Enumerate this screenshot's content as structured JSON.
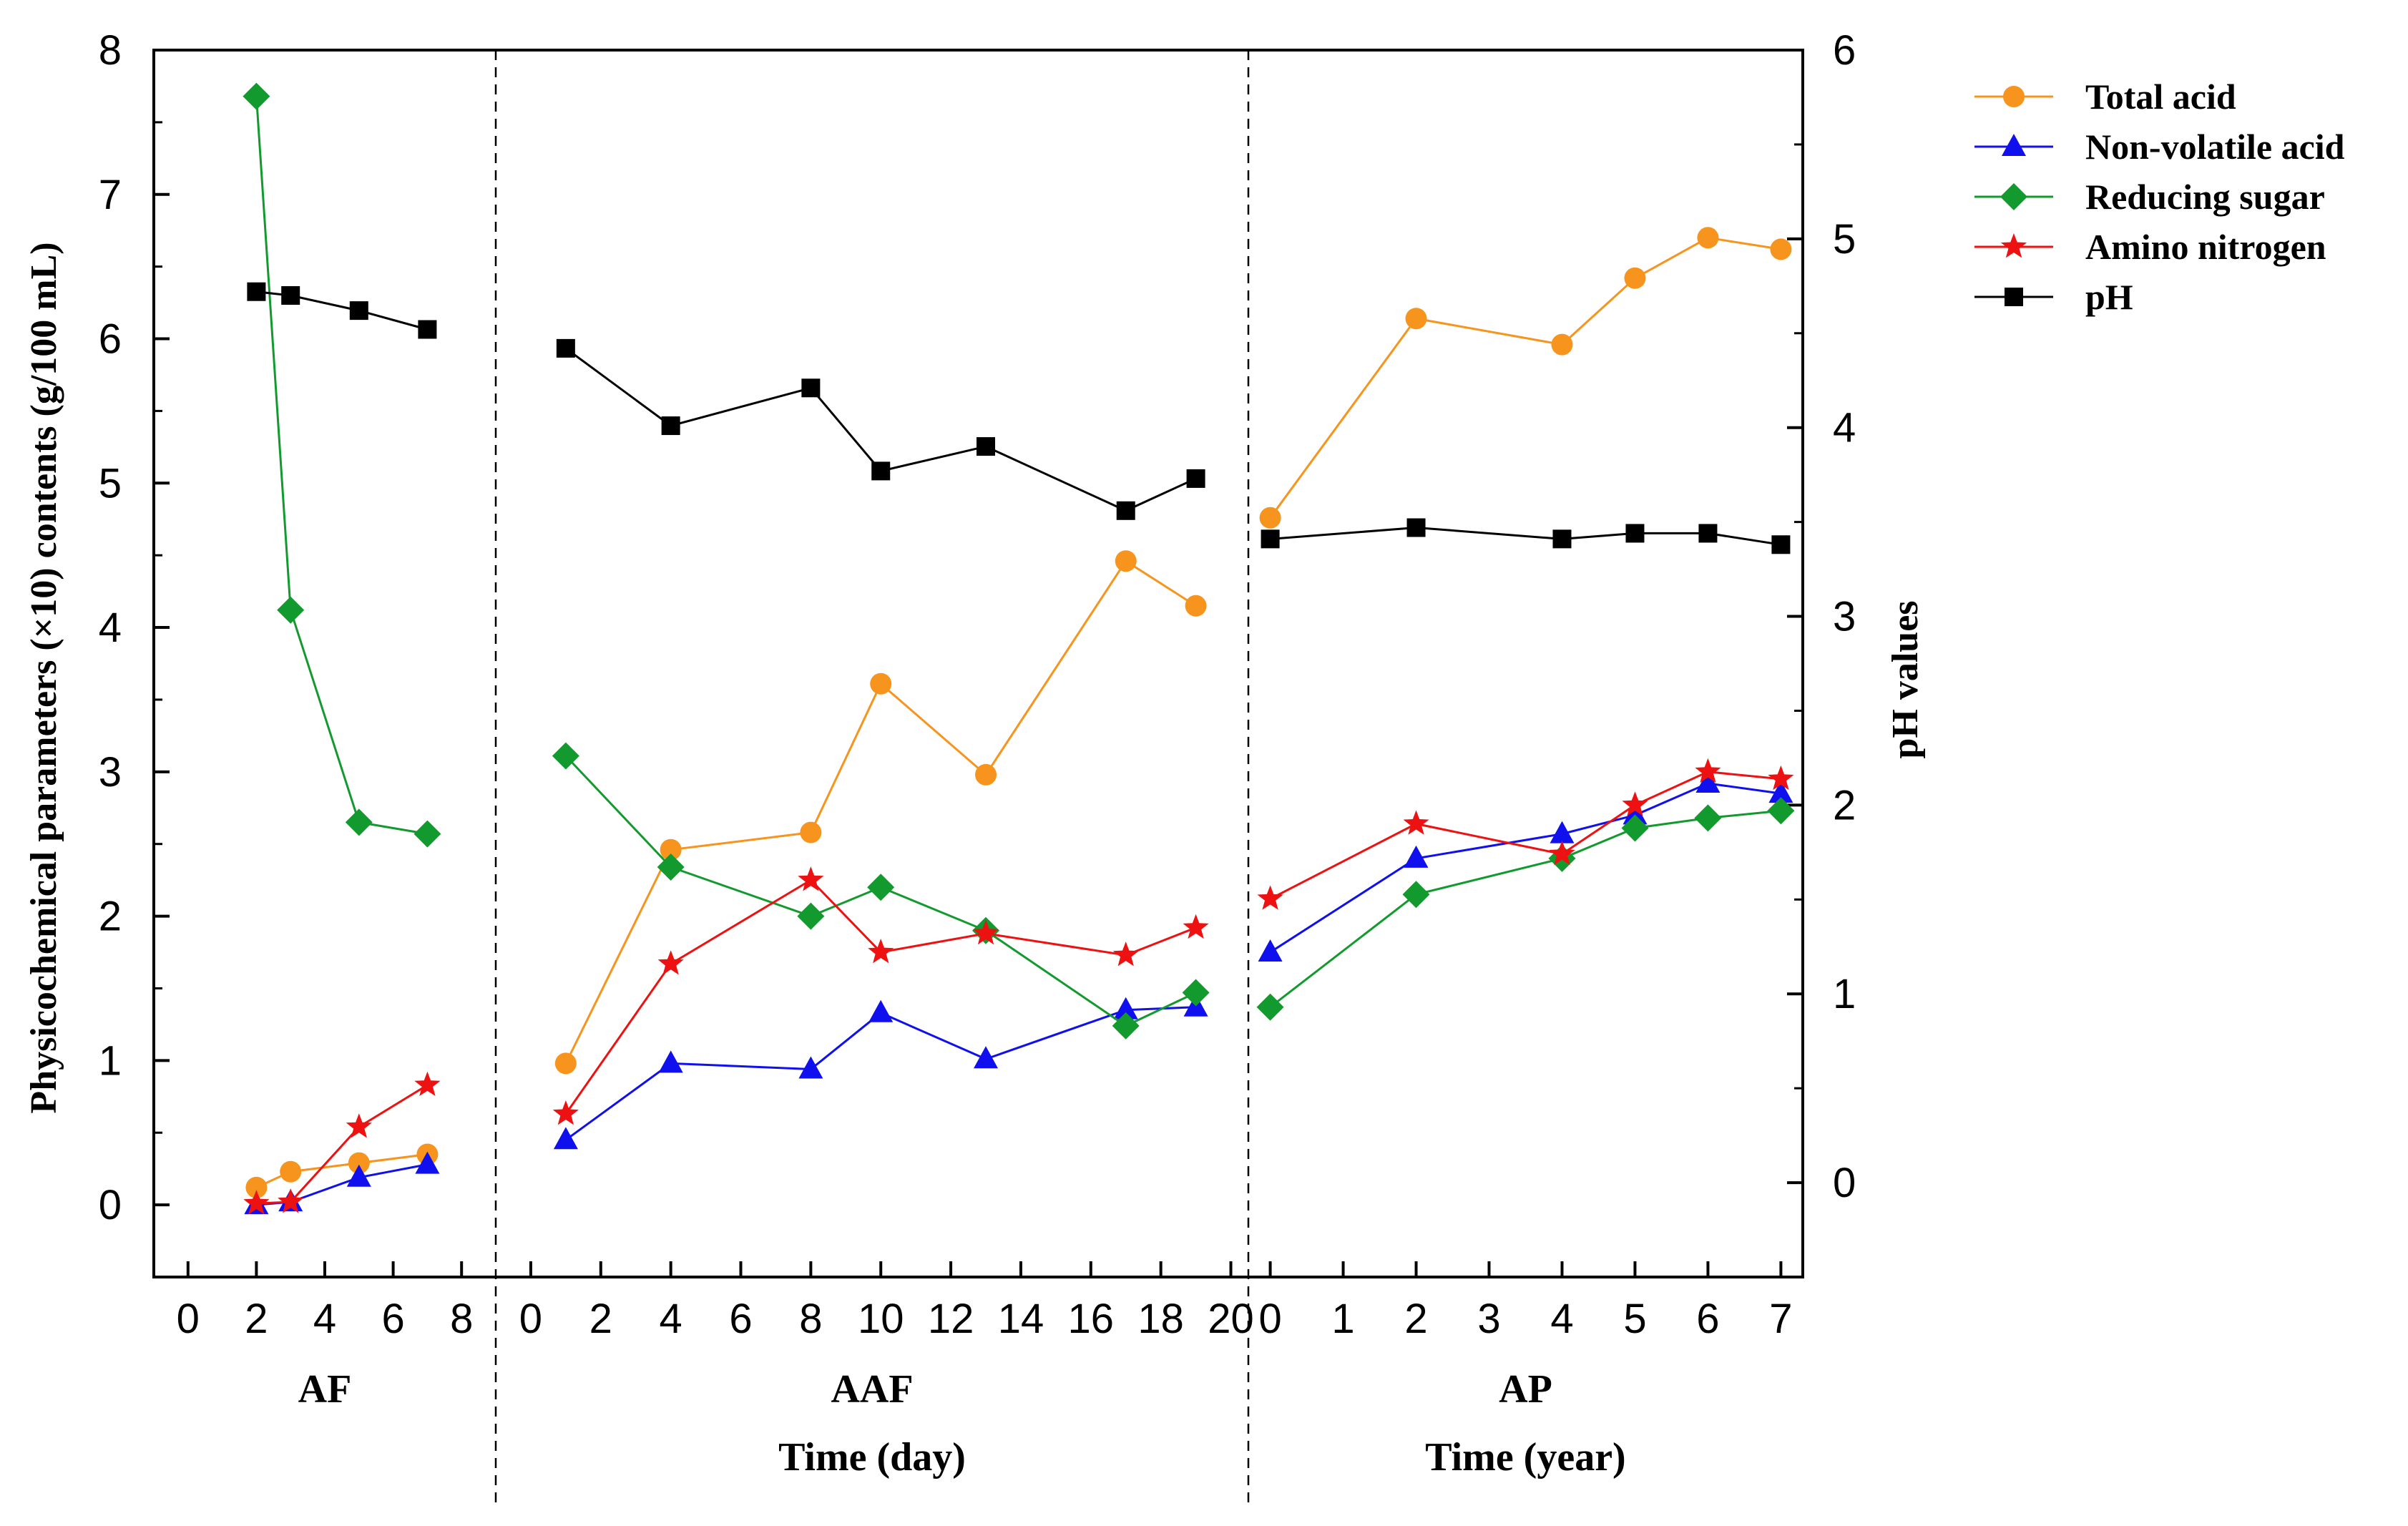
{
  "chart_data": {
    "type": "line",
    "ylabel_left": "Physicochemical parameters (×10) contents (g/100 mL)",
    "ylabel_right": "pH values",
    "left_ylim": [
      -0.5,
      8
    ],
    "left_yticks": [
      0,
      1,
      2,
      3,
      4,
      5,
      6,
      7,
      8
    ],
    "right_ylim": [
      -0.5,
      6
    ],
    "right_yticks": [
      0,
      1,
      2,
      3,
      4,
      5,
      6
    ],
    "legend_position": "top-right, outside plot",
    "colors": {
      "total_acid": "#F7941D",
      "non_volatile_acid": "#1010EE",
      "reducing_sugar": "#139A2E",
      "amino_nitrogen": "#EE1111",
      "ph": "#000000"
    },
    "panels": [
      {
        "name": "AF",
        "xlabel": "",
        "xlim": [
          -1,
          9
        ],
        "x_ticks": [
          "0",
          "2",
          "4",
          "6",
          "8"
        ],
        "x_tick_values": [
          0,
          2,
          4,
          6,
          8
        ],
        "series": [
          {
            "name": "Total acid",
            "x": [
              2,
              3,
              5,
              7
            ],
            "y": [
              0.12,
              0.23,
              0.29,
              0.35
            ]
          },
          {
            "name": "Non-volatile acid",
            "x": [
              2,
              3,
              5,
              7
            ],
            "y": [
              0.0,
              0.02,
              0.19,
              0.28
            ]
          },
          {
            "name": "Reducing sugar",
            "x": [
              2,
              3,
              5,
              7
            ],
            "y": [
              7.68,
              4.12,
              2.65,
              2.57
            ]
          },
          {
            "name": "Amino nitrogen",
            "x": [
              2,
              3,
              5,
              7
            ],
            "y": [
              0.01,
              0.02,
              0.54,
              0.83
            ]
          },
          {
            "name": "pH",
            "axis": "right",
            "x": [
              2,
              3,
              5,
              7
            ],
            "y": [
              4.72,
              4.7,
              4.62,
              4.52
            ]
          }
        ]
      },
      {
        "name": "AAF",
        "xlabel": "Time (day)",
        "xlim": [
          -1,
          20.5
        ],
        "x_ticks": [
          "0",
          "2",
          "4",
          "6",
          "8",
          "10",
          "12",
          "14",
          "16",
          "18",
          "20"
        ],
        "x_tick_values": [
          0,
          2,
          4,
          6,
          8,
          10,
          12,
          14,
          16,
          18,
          20
        ],
        "series": [
          {
            "name": "Total acid",
            "x": [
              1,
              4,
              8,
              10,
              13,
              17,
              19
            ],
            "y": [
              0.98,
              2.46,
              2.58,
              3.61,
              2.98,
              4.46,
              4.15
            ]
          },
          {
            "name": "Non-volatile acid",
            "x": [
              1,
              4,
              8,
              10,
              13,
              17,
              19
            ],
            "y": [
              0.45,
              0.98,
              0.94,
              1.33,
              1.01,
              1.35,
              1.37
            ]
          },
          {
            "name": "Reducing sugar",
            "x": [
              1,
              4,
              8,
              10,
              13,
              17,
              19
            ],
            "y": [
              3.11,
              2.34,
              2.0,
              2.2,
              1.9,
              1.24,
              1.47
            ]
          },
          {
            "name": "Amino nitrogen",
            "x": [
              1,
              4,
              8,
              10,
              13,
              17,
              19
            ],
            "y": [
              0.63,
              1.67,
              2.25,
              1.75,
              1.88,
              1.73,
              1.92
            ]
          },
          {
            "name": "pH",
            "axis": "right",
            "x": [
              1,
              4,
              8,
              10,
              13,
              17,
              19
            ],
            "y": [
              4.42,
              4.01,
              4.21,
              3.77,
              3.9,
              3.56,
              3.73
            ]
          }
        ]
      },
      {
        "name": "AP",
        "xlabel": "Time (year)",
        "xlim": [
          -0.3,
          7.3
        ],
        "x_ticks": [
          "0",
          "1",
          "2",
          "3",
          "4",
          "5",
          "6",
          "7"
        ],
        "x_tick_values": [
          0,
          1,
          2,
          3,
          4,
          5,
          6,
          7
        ],
        "series": [
          {
            "name": "Total acid",
            "x": [
              0,
              2,
              4,
              5,
              6,
              7
            ],
            "y": [
              4.76,
              6.14,
              5.96,
              6.42,
              6.7,
              6.62
            ]
          },
          {
            "name": "Non-volatile acid",
            "x": [
              0,
              2,
              4,
              5,
              6,
              7
            ],
            "y": [
              1.75,
              2.4,
              2.57,
              2.7,
              2.92,
              2.85
            ]
          },
          {
            "name": "Reducing sugar",
            "x": [
              0,
              2,
              4,
              5,
              6,
              7
            ],
            "y": [
              1.37,
              2.15,
              2.4,
              2.61,
              2.68,
              2.73
            ]
          },
          {
            "name": "Amino nitrogen",
            "x": [
              0,
              2,
              4,
              5,
              6,
              7
            ],
            "y": [
              2.12,
              2.64,
              2.43,
              2.77,
              3.0,
              2.95
            ]
          },
          {
            "name": "pH",
            "axis": "right",
            "x": [
              0,
              2,
              4,
              5,
              6,
              7
            ],
            "y": [
              3.41,
              3.47,
              3.41,
              3.44,
              3.44,
              3.38
            ]
          }
        ]
      }
    ],
    "legend": [
      "Total acid",
      "Non-volatile acid",
      "Reducing sugar",
      "Amino nitrogen",
      "pH"
    ]
  }
}
